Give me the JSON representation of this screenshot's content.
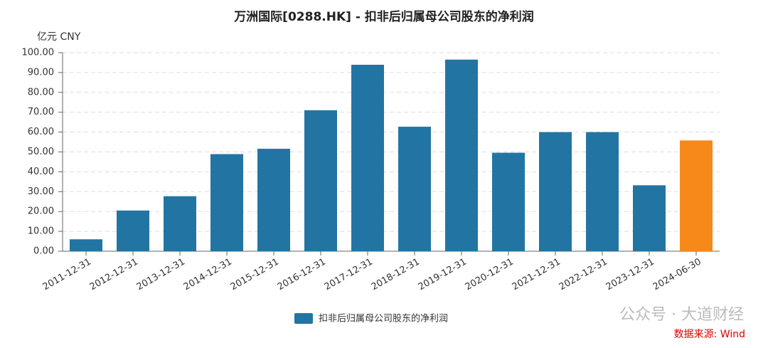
{
  "chart_data": {
    "type": "bar",
    "title": "万洲国际[0288.HK] - 扣非后归属母公司股东的净利润",
    "y_axis_label": "亿元  CNY",
    "categories": [
      "2011-12-31",
      "2012-12-31",
      "2013-12-31",
      "2014-12-31",
      "2015-12-31",
      "2016-12-31",
      "2017-12-31",
      "2018-12-31",
      "2019-12-31",
      "2020-12-31",
      "2021-12-31",
      "2022-12-31",
      "2023-12-31",
      "2024-06-30"
    ],
    "series": [
      {
        "name": "扣非后归属母公司股东的净利润",
        "color": "#2275a3",
        "values": [
          6.0,
          20.5,
          27.7,
          48.9,
          51.6,
          71.0,
          93.9,
          62.7,
          96.5,
          49.6,
          60.0,
          60.0,
          33.2,
          55.8
        ],
        "bar_colors": [
          "#2275a3",
          "#2275a3",
          "#2275a3",
          "#2275a3",
          "#2275a3",
          "#2275a3",
          "#2275a3",
          "#2275a3",
          "#2275a3",
          "#2275a3",
          "#2275a3",
          "#2275a3",
          "#2275a3",
          "#f7891a"
        ]
      }
    ],
    "ylim": [
      0,
      100
    ],
    "yticks": [
      {
        "value": 0,
        "label": "0.00"
      },
      {
        "value": 10,
        "label": "10.00"
      },
      {
        "value": 20,
        "label": "20.00"
      },
      {
        "value": 30,
        "label": "30.00"
      },
      {
        "value": 40,
        "label": "40.00"
      },
      {
        "value": 50,
        "label": "50.00"
      },
      {
        "value": 60,
        "label": "60.00"
      },
      {
        "value": 70,
        "label": "70.00"
      },
      {
        "value": 80,
        "label": "80.00"
      },
      {
        "value": 90,
        "label": "90.00"
      },
      {
        "value": 100,
        "label": "100.00"
      }
    ],
    "grid": true,
    "watermark": "公众号 · 大道财经",
    "source": "数据来源: Wind"
  }
}
